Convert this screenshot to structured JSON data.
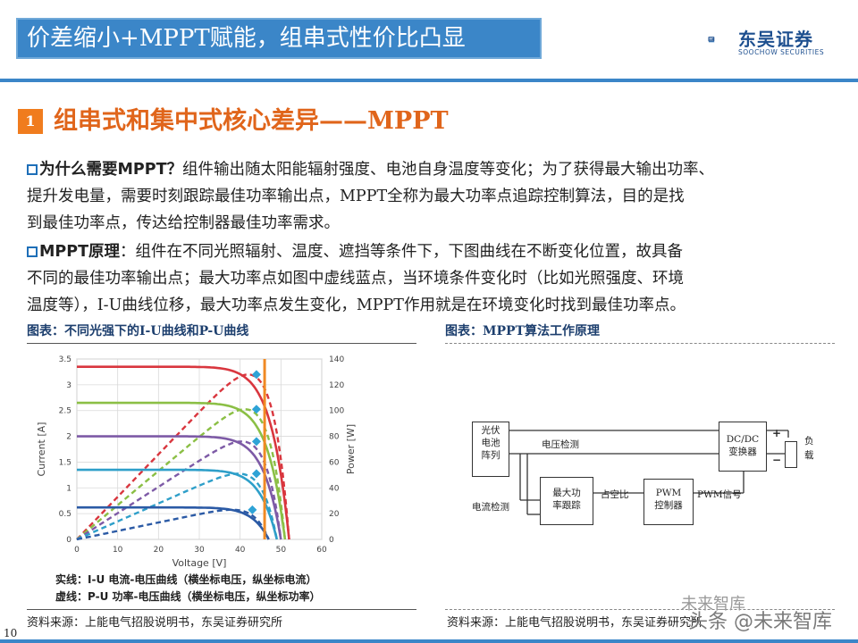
{
  "header": {
    "title": "价差缩小+MPPT赋能，组串式性价比凸显",
    "logo_cn": "东吴证券",
    "logo_en": "SOOCHOW SECURITIES",
    "brand_color": "#3b86c8"
  },
  "section": {
    "number": "1",
    "title": "组串式和集中式核心差异——MPPT",
    "accent_color": "#e0651b"
  },
  "paragraph1": {
    "heading": "为什么需要MPPT？",
    "line1": "组件输出随太阳能辐射强度、电池自身温度等变化；为了获得最大输出功率、",
    "line2": "提升发电量，需要时刻跟踪最佳功率输出点，MPPT全称为最大功率点追踪控制算法，目的是找",
    "line3": "到最佳功率点，传达给控制器最佳功率需求。"
  },
  "paragraph2": {
    "heading": "MPPT原理",
    "line1": "：组件在不同光照辐射、温度、遮挡等条件下，下图曲线在不断变化位置，故具备",
    "line2": "不同的最佳功率输出点；最大功率点如图中虚线蓝点，当环境条件变化时（比如光照强度、环境",
    "line3": "温度等），I-U曲线位移，最大功率点发生变化，MPPT作用就是在环境变化时找到最佳功率点。"
  },
  "figure_left": {
    "caption": "图表：不同光强下的I-U曲线和P-U曲线",
    "legend_solid": "实线：I-U 电流-电压曲线（横坐标电压，纵坐标电流）",
    "legend_dashed": "虚线：P-U 功率-电压曲线（横坐标电压，纵坐标功率）",
    "source": "资料来源：上能电气招股说明书，东吴证券研究所"
  },
  "figure_right": {
    "caption": "图表：MPPT算法工作原理",
    "source": "资料来源：上能电气招股说明书，东吴证券研究所",
    "blocks": {
      "pv": [
        "光伏",
        "电池",
        "阵列"
      ],
      "dcdc": [
        "DC/DC",
        "变换器"
      ],
      "load": [
        "负",
        "载"
      ],
      "mppt": [
        "最大功",
        "率跟踪"
      ],
      "pwm": [
        "PWM",
        "控制器"
      ]
    },
    "labels": {
      "voltage_detect": "电压检测",
      "current_detect": "电流检测",
      "duty_ratio": "占空比",
      "pwm_signal": "PWM信号",
      "plus": "+",
      "minus": "−"
    }
  },
  "chart_data": {
    "type": "line",
    "xlabel": "Voltage [V]",
    "ylabel_left": "Current [A]",
    "ylabel_right": "Power [W]",
    "xlim": [
      0,
      60
    ],
    "ylim_left": [
      0,
      3.5
    ],
    "ylim_right": [
      0,
      140
    ],
    "x_ticks": [
      0,
      10,
      20,
      30,
      40,
      50,
      60
    ],
    "y_ticks_left": [
      0,
      0.5,
      1,
      1.5,
      2,
      2.5,
      3,
      3.5
    ],
    "y_ticks_right": [
      0,
      20,
      40,
      60,
      80,
      100,
      120,
      140
    ],
    "mpp_voltage_line": 46,
    "grid": true,
    "series": [
      {
        "color": "#d9363e",
        "isc": 3.35,
        "voc": 52,
        "pmax": 128,
        "vmp": 44
      },
      {
        "color": "#8bbf45",
        "isc": 2.65,
        "voc": 51,
        "pmax": 101,
        "vmp": 44
      },
      {
        "color": "#7d5aa6",
        "isc": 2.0,
        "voc": 50,
        "pmax": 76,
        "vmp": 44
      },
      {
        "color": "#2e9fc9",
        "isc": 1.35,
        "voc": 49,
        "pmax": 51,
        "vmp": 44
      },
      {
        "color": "#2b5aa5",
        "isc": 0.62,
        "voc": 47,
        "pmax": 23,
        "vmp": 43
      }
    ]
  },
  "page_number": "10",
  "watermark": {
    "line1": "未来智库",
    "line2": "头条 @未来智库"
  }
}
